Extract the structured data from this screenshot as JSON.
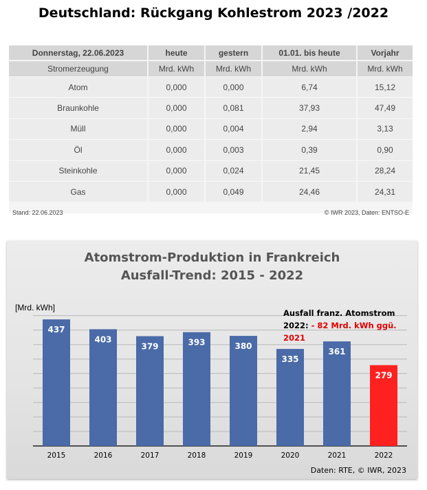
{
  "title": "Deutschland: Rückgang Kohlestrom 2023 /2022",
  "table": {
    "headers": [
      "Donnerstag, 22.06.2023",
      "heute",
      "gestern",
      "01.01. bis heute",
      "Vorjahr"
    ],
    "subheaders": [
      "Stromerzeugung",
      "Mrd. kWh",
      "Mrd. kWh",
      "Mrd. kWh",
      "Mrd. kWh"
    ],
    "rows": [
      [
        "Atom",
        "0,000",
        "0,000",
        "6,74",
        "15,12"
      ],
      [
        "Braunkohle",
        "0,000",
        "0,081",
        "37,93",
        "47,49"
      ],
      [
        "Müll",
        "0,000",
        "0,004",
        "2,94",
        "3,13"
      ],
      [
        "Öl",
        "0,000",
        "0,003",
        "0,39",
        "0,90"
      ],
      [
        "Steinkohle",
        "0,000",
        "0,024",
        "21,45",
        "28,24"
      ],
      [
        "Gas",
        "0,000",
        "0,049",
        "24,46",
        "24,31"
      ]
    ],
    "footer_left": "Stand: 22.06.2023",
    "footer_right": "© IWR 2023, Daten: ENTSO-E"
  },
  "chart_data": {
    "type": "bar",
    "title_line1": "Atomstrom-Produktion in Frankreich",
    "title_line2": "Ausfall-Trend: 2015 - 2022",
    "ylabel": "[Mrd. kWh]",
    "categories": [
      "2015",
      "2016",
      "2017",
      "2018",
      "2019",
      "2020",
      "2021",
      "2022"
    ],
    "values": [
      437,
      403,
      379,
      393,
      380,
      335,
      361,
      279
    ],
    "value_labels": [
      "437",
      "403",
      "379",
      "393",
      "380",
      "335",
      "361",
      "279"
    ],
    "ylim": [
      0,
      480
    ],
    "gridlines": true,
    "bar_color": "#4a6aa8",
    "highlight_color": "#ff2020",
    "highlight_index": 7,
    "annotation_line1": "Ausfall franz. Atomstrom",
    "annotation_line2_prefix": "2022: ",
    "annotation_line2_highlight": "- 82 Mrd. kWh ggü. 2021",
    "source": "Daten: RTE, © IWR, 2023"
  }
}
